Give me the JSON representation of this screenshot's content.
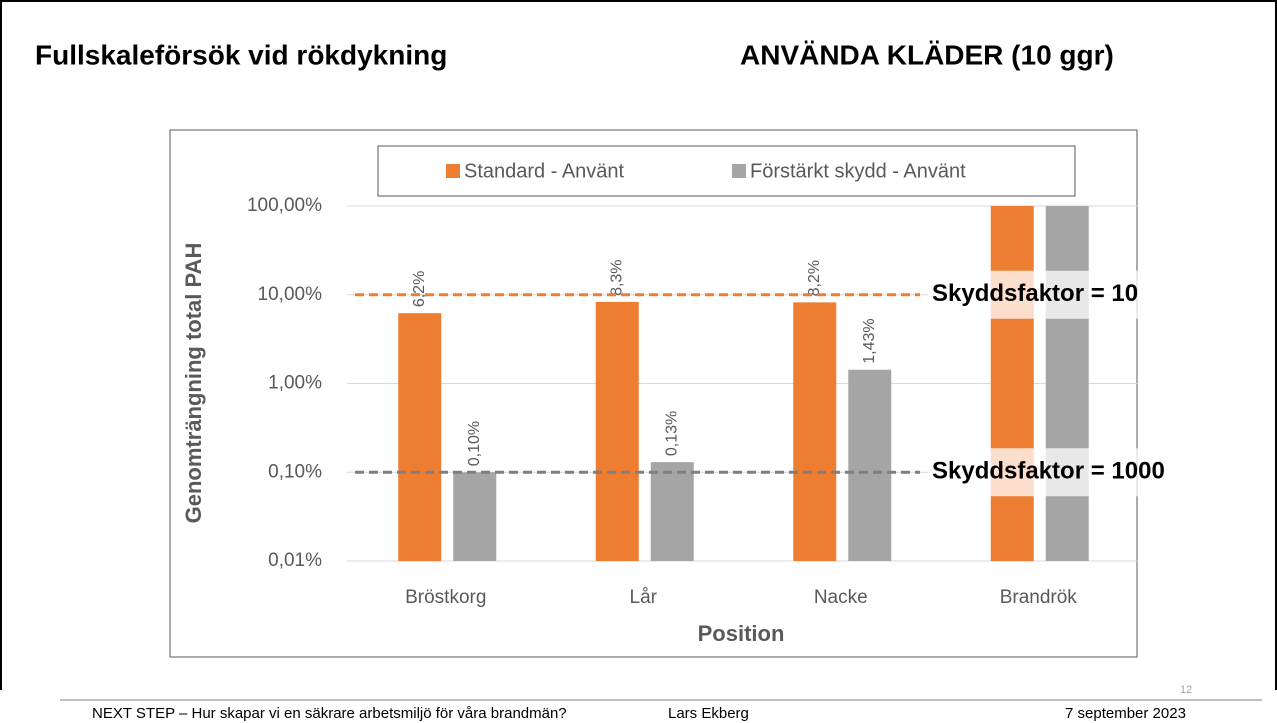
{
  "slide": {
    "title": "Fullskaleförsök vid rökdykning",
    "subtitle": "ANVÄNDA KLÄDER (10 ggr)",
    "footer": {
      "left": "NEXT STEP – Hur skapar vi en säkrare arbetsmiljö för våra brandmän?",
      "center": "Lars Ekberg",
      "right": "7 september 2023"
    },
    "page_number": "12"
  },
  "chart_data": {
    "type": "bar",
    "log_scale": true,
    "categories": [
      "Bröstkorg",
      "Lår",
      "Nacke",
      "Brandrök"
    ],
    "series": [
      {
        "name": "Standard - Använt",
        "color": "#ed7d31",
        "values": [
          6.2,
          8.3,
          8.2,
          100
        ],
        "value_labels": [
          "6,2%",
          "8,3%",
          "8,2%",
          null
        ]
      },
      {
        "name": "Förstärkt skydd - Använt",
        "color": "#a5a5a5",
        "values": [
          0.1,
          0.13,
          1.43,
          100
        ],
        "value_labels": [
          "0,10%",
          "0,13%",
          "1,43%",
          null
        ]
      }
    ],
    "ylim": [
      0.01,
      100
    ],
    "yticks": [
      {
        "value": 0.01,
        "label": "0,01%"
      },
      {
        "value": 0.1,
        "label": "0,10%"
      },
      {
        "value": 1,
        "label": "1,00%"
      },
      {
        "value": 10,
        "label": "10,00%"
      },
      {
        "value": 100,
        "label": "100,00%"
      }
    ],
    "ylabel": "Genomträngning total PAH",
    "xlabel": "Position",
    "grid": true,
    "legend": "top",
    "reference_lines": [
      {
        "value": 10,
        "label": "Skyddsfaktor = 10",
        "color": "#ed7d31"
      },
      {
        "value": 0.1,
        "label": "Skyddsfaktor = 1000",
        "color": "#7f7f7f"
      }
    ]
  }
}
